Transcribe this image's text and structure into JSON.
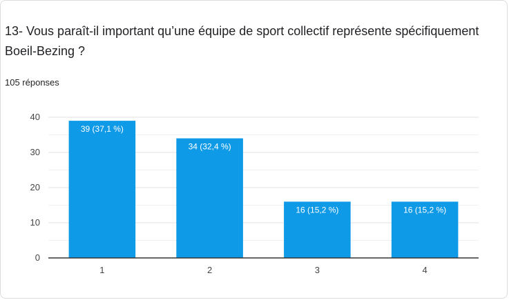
{
  "question": {
    "title": "13- Vous paraît-il important qu’une équipe de sport collectif représente spécifiquement Boeil-Bezing ?",
    "responses": "105 réponses"
  },
  "colors": {
    "bar": "#0f9ae8",
    "grid": "#e0e0e0",
    "axis": "#333333",
    "border": "#dadce0"
  },
  "chart_data": {
    "type": "bar",
    "categories": [
      "1",
      "2",
      "3",
      "4"
    ],
    "values": [
      39,
      34,
      16,
      16
    ],
    "data_labels": [
      "39 (37,1 %)",
      "34 (32,4 %)",
      "16 (15,2 %)",
      "16 (15,2 %)"
    ],
    "y_ticks": [
      0,
      10,
      20,
      30,
      40
    ],
    "ylim": [
      0,
      40
    ],
    "grid": true,
    "title": "",
    "xlabel": "",
    "ylabel": ""
  }
}
